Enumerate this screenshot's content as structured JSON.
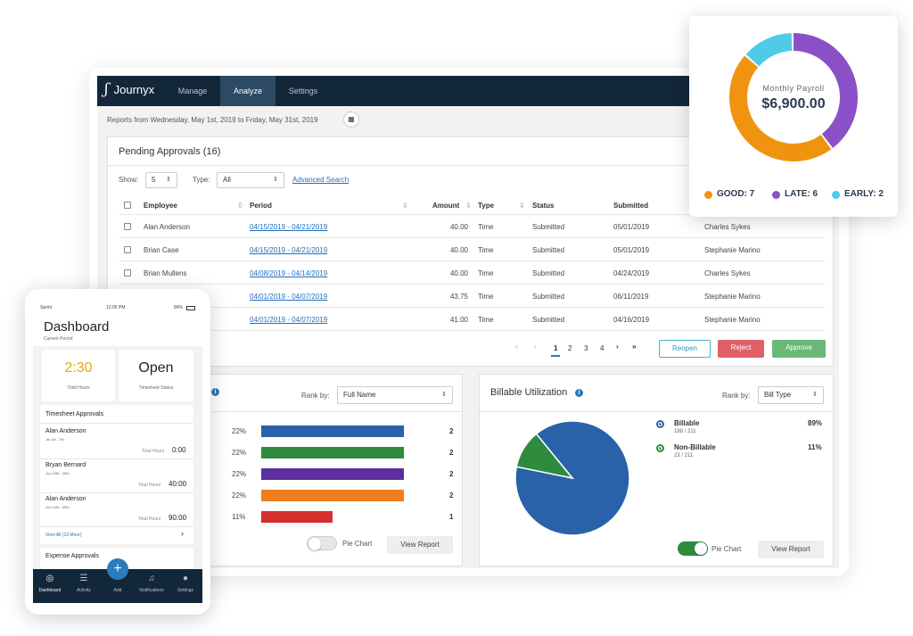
{
  "nav": {
    "brand": "Journyx",
    "tabs": [
      "Manage",
      "Analyze",
      "Settings"
    ],
    "active_tab": "Analyze"
  },
  "report_range": "Reports from Wednesday, May 1st, 2019 to Friday, May 31st, 2019",
  "pending": {
    "title": "Pending Approvals (16)",
    "show_label": "Show:",
    "show_value": "5",
    "type_label": "Type:",
    "type_value": "All",
    "advanced_search": "Advanced Search",
    "columns": [
      "Employee",
      "Period",
      "Amount",
      "Type",
      "Status",
      "Submitted"
    ],
    "rows": [
      {
        "employee": "Alan Anderson",
        "period": "04/15/2019 - 04/21/2019",
        "amount": "40.00",
        "type": "Time",
        "status": "Submitted",
        "submitted": "05/01/2019",
        "approver": "Charles Sykes"
      },
      {
        "employee": "Brian Case",
        "period": "04/15/2019 - 04/21/2019",
        "amount": "40.00",
        "type": "Time",
        "status": "Submitted",
        "submitted": "05/01/2019",
        "approver": "Stephanie Marino"
      },
      {
        "employee": "Brian Mullens",
        "period": "04/08/2019 - 04/14/2019",
        "amount": "40.00",
        "type": "Time",
        "status": "Submitted",
        "submitted": "04/24/2019",
        "approver": "Charles Sykes"
      },
      {
        "employee": "",
        "period": "04/01/2019 - 04/07/2019",
        "amount": "43.75",
        "type": "Time",
        "status": "Submitted",
        "submitted": "06/11/2019",
        "approver": "Stephanie Marino"
      },
      {
        "employee": "",
        "period": "04/01/2019 - 04/07/2019",
        "amount": "41.00",
        "type": "Time",
        "status": "Submitted",
        "submitted": "04/16/2019",
        "approver": "Stephanie Marino"
      }
    ],
    "pager": {
      "first": "«",
      "prev": "‹",
      "pages": [
        "1",
        "2",
        "3",
        "4"
      ],
      "current": "1",
      "next": "›",
      "last": "»"
    },
    "buttons": {
      "reopen": "Reopen",
      "reject": "Reject",
      "approve": "Approve"
    }
  },
  "left_panel": {
    "rank_label": "Rank by:",
    "rank_value": "Full Name",
    "toggle_label": "Pie Chart",
    "toggle_on": false,
    "view_report": "View Report"
  },
  "billable": {
    "title": "Billable Utilization",
    "rank_label": "Rank by:",
    "rank_value": "Bill Type",
    "legend": [
      {
        "name": "Billable",
        "sub": "188 / 211",
        "pct": "89%",
        "color": "#2962a8"
      },
      {
        "name": "Non-Billable",
        "sub": "23 / 211",
        "pct": "11%",
        "color": "#2e8b3e"
      }
    ],
    "toggle_label": "Pie Chart",
    "toggle_on": true,
    "view_report": "View Report"
  },
  "payroll": {
    "center_label": "Monthly Payroll",
    "amount": "$6,900.00",
    "legend": [
      {
        "label": "GOOD: 7",
        "color": "#f0940f"
      },
      {
        "label": "LATE: 6",
        "color": "#8b4fc7"
      },
      {
        "label": "EARLY: 2",
        "color": "#4fcbe8"
      }
    ]
  },
  "phone": {
    "status": {
      "carrier": "Sprint",
      "time": "12:05 PM",
      "battery": "84%"
    },
    "title": "Dashboard",
    "subtitle": "Current Period",
    "total_hours_value": "2:30",
    "total_hours_label": "Total Hours",
    "timesheet_status_value": "Open",
    "timesheet_status_label": "Timesheet Status",
    "approvals_title": "Timesheet Approvals",
    "approvals": [
      {
        "name": "Alan Anderson",
        "range": "Jul 1st - 7th",
        "hours_label": "Total Hours",
        "hours": "0:00"
      },
      {
        "name": "Bryan Bernard",
        "range": "Jun 24th - 30th",
        "hours_label": "Total Hours",
        "hours": "40:00"
      },
      {
        "name": "Alan Anderson",
        "range": "Jun 24th - 30th",
        "hours_label": "Total Hours",
        "hours": "90:00"
      }
    ],
    "view_all": "View All (13 More)",
    "expense_title": "Expense Approvals",
    "tabs": [
      "Dashboard",
      "Activity",
      "Add",
      "Notifications",
      "Settings"
    ]
  },
  "chart_data": [
    {
      "type": "bar",
      "title": "",
      "orientation": "horizontal",
      "categories": [
        "",
        "",
        "",
        "",
        ""
      ],
      "series": [
        {
          "values": [
            2,
            2,
            2,
            2,
            1
          ]
        }
      ],
      "percent_labels": [
        "22%",
        "22%",
        "22%",
        "22%",
        "11%"
      ],
      "colors": [
        "#2962a8",
        "#2e8b3e",
        "#5b2fa0",
        "#f07e1e",
        "#d62f2f"
      ],
      "xlim": [
        0,
        2
      ]
    },
    {
      "type": "pie",
      "title": "Billable Utilization",
      "labels": [
        "Billable",
        "Non-Billable"
      ],
      "values": [
        188,
        23
      ],
      "colors": [
        "#2962a8",
        "#2e8b3e"
      ]
    },
    {
      "type": "pie",
      "title": "Monthly Payroll",
      "donut": true,
      "labels": [
        "GOOD",
        "LATE",
        "EARLY"
      ],
      "values": [
        7,
        6,
        2
      ],
      "colors": [
        "#f0940f",
        "#8b4fc7",
        "#4fcbe8"
      ]
    }
  ]
}
